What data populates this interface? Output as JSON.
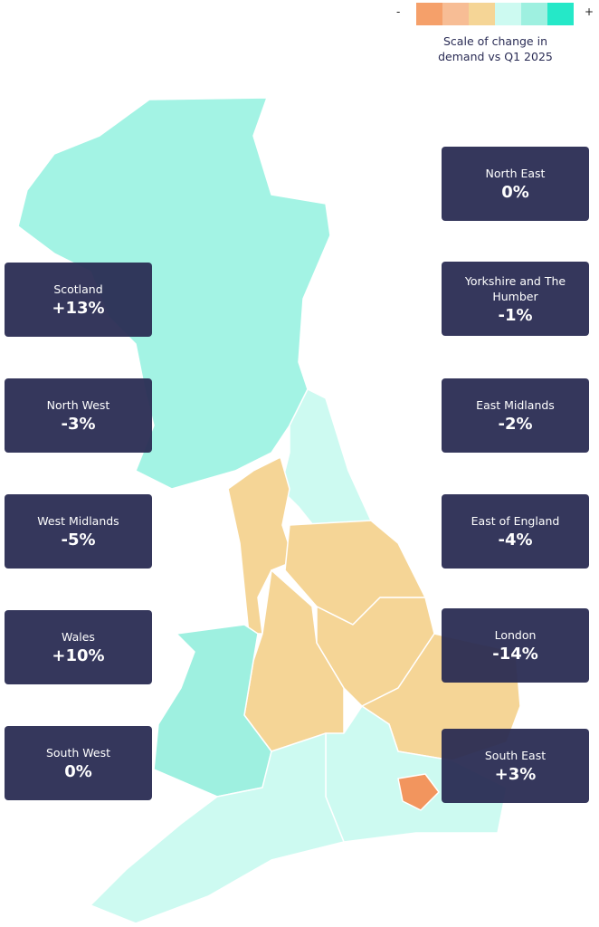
{
  "legend": {
    "low_label": "-",
    "high_label": "+",
    "colors": [
      "#f5a06a",
      "#f7bd95",
      "#f5d596",
      "#cdfaf1",
      "#9ef0e0",
      "#25e8c8"
    ],
    "title": "Scale of change in demand vs Q1 2025"
  },
  "regions": [
    {
      "name": "North East",
      "change": "0%"
    },
    {
      "name": "Scotland",
      "change": "+13%"
    },
    {
      "name": "Yorkshire and The Humber",
      "change": "-1%"
    },
    {
      "name": "North West",
      "change": "-3%"
    },
    {
      "name": "East Midlands",
      "change": "-2%"
    },
    {
      "name": "West Midlands",
      "change": "-5%"
    },
    {
      "name": "East of England",
      "change": "-4%"
    },
    {
      "name": "Wales",
      "change": "+10%"
    },
    {
      "name": "London",
      "change": "-14%"
    },
    {
      "name": "South West",
      "change": "0%"
    },
    {
      "name": "South East",
      "change": "+3%"
    }
  ]
}
